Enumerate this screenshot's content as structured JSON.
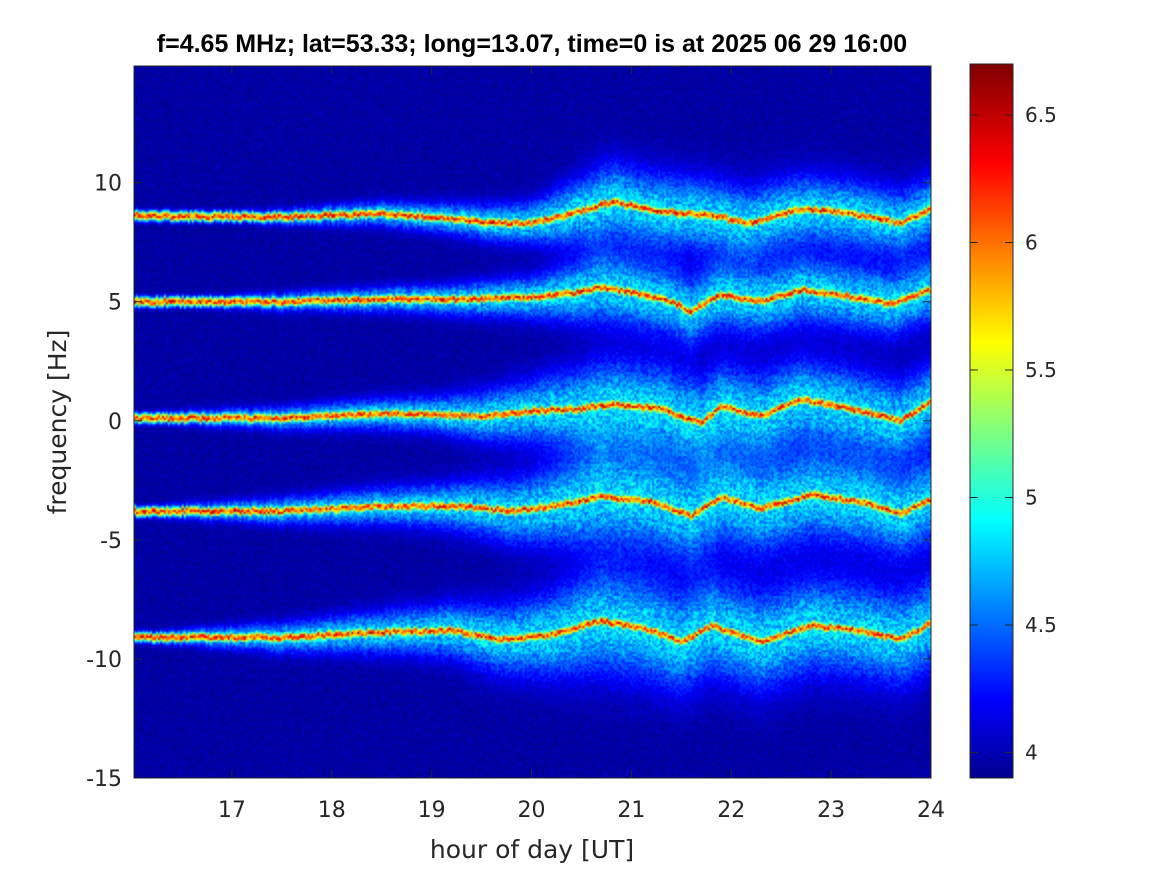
{
  "chart_data": {
    "type": "heatmap",
    "title": "f=4.65 MHz;  lat=53.33; long=13.07, time=0 is at 2025 06 29 16:00",
    "xlabel": "hour of day [UT]",
    "ylabel": "frequency [Hz]",
    "xlim": [
      16.02,
      24
    ],
    "ylim": [
      -15,
      14.9
    ],
    "x_ticks": [
      17,
      18,
      19,
      20,
      21,
      22,
      23,
      24
    ],
    "y_ticks": [
      -15,
      -10,
      -5,
      0,
      5,
      10
    ],
    "colorbar": {
      "limits": [
        3.9,
        6.7
      ],
      "ticks": [
        4,
        4.5,
        5,
        5.5,
        6,
        6.5
      ],
      "colormap": "jet"
    },
    "background_value": 4.0,
    "colors": {
      "background": "#00008F",
      "peak": "#7F0000"
    },
    "traces": [
      {
        "base_frequency": 8.6,
        "points": [
          [
            16.1,
            8.6
          ],
          [
            17.5,
            8.55
          ],
          [
            18.5,
            8.7
          ],
          [
            19.2,
            8.5
          ],
          [
            19.6,
            8.3
          ],
          [
            20.0,
            8.3
          ],
          [
            20.5,
            8.8
          ],
          [
            20.8,
            9.2
          ],
          [
            21.3,
            8.8
          ],
          [
            21.8,
            8.6
          ],
          [
            22.2,
            8.3
          ],
          [
            22.7,
            8.9
          ],
          [
            23.2,
            8.7
          ],
          [
            23.7,
            8.3
          ],
          [
            24.0,
            8.9
          ]
        ],
        "spread": [
          [
            16.1,
            0.05
          ],
          [
            19.0,
            0.4
          ],
          [
            20.0,
            0.6
          ],
          [
            20.7,
            1.1
          ],
          [
            24.0,
            0.9
          ]
        ]
      },
      {
        "base_frequency": 5.0,
        "points": [
          [
            16.1,
            5.0
          ],
          [
            17.5,
            5.0
          ],
          [
            18.5,
            5.1
          ],
          [
            19.3,
            5.1
          ],
          [
            20.0,
            5.2
          ],
          [
            20.5,
            5.4
          ],
          [
            20.7,
            5.6
          ],
          [
            21.0,
            5.4
          ],
          [
            21.4,
            5.0
          ],
          [
            21.6,
            4.6
          ],
          [
            21.9,
            5.3
          ],
          [
            22.3,
            5.0
          ],
          [
            22.7,
            5.5
          ],
          [
            23.2,
            5.2
          ],
          [
            23.6,
            4.9
          ],
          [
            24.0,
            5.5
          ]
        ],
        "spread": [
          [
            16.1,
            0.1
          ],
          [
            19.0,
            0.4
          ],
          [
            20.0,
            0.6
          ],
          [
            20.7,
            1.0
          ],
          [
            24.0,
            0.9
          ]
        ]
      },
      {
        "base_frequency": 0.1,
        "points": [
          [
            16.1,
            0.1
          ],
          [
            17.5,
            0.1
          ],
          [
            18.5,
            0.3
          ],
          [
            19.5,
            0.2
          ],
          [
            20.0,
            0.4
          ],
          [
            20.5,
            0.5
          ],
          [
            20.8,
            0.7
          ],
          [
            21.3,
            0.5
          ],
          [
            21.7,
            -0.1
          ],
          [
            21.9,
            0.6
          ],
          [
            22.3,
            0.2
          ],
          [
            22.7,
            0.9
          ],
          [
            23.1,
            0.6
          ],
          [
            23.7,
            0.0
          ],
          [
            24.0,
            0.8
          ]
        ],
        "spread": [
          [
            16.1,
            0.15
          ],
          [
            19.0,
            0.5
          ],
          [
            20.0,
            0.9
          ],
          [
            20.7,
            1.3
          ],
          [
            24.0,
            1.1
          ]
        ]
      },
      {
        "base_frequency": -3.8,
        "points": [
          [
            16.1,
            -3.8
          ],
          [
            17.5,
            -3.8
          ],
          [
            18.5,
            -3.6
          ],
          [
            19.3,
            -3.6
          ],
          [
            19.8,
            -3.8
          ],
          [
            20.2,
            -3.6
          ],
          [
            20.7,
            -3.2
          ],
          [
            21.2,
            -3.4
          ],
          [
            21.6,
            -4.0
          ],
          [
            21.9,
            -3.2
          ],
          [
            22.3,
            -3.7
          ],
          [
            22.8,
            -3.1
          ],
          [
            23.3,
            -3.4
          ],
          [
            23.7,
            -3.9
          ],
          [
            24.0,
            -3.3
          ]
        ],
        "spread": [
          [
            16.1,
            0.15
          ],
          [
            19.0,
            0.6
          ],
          [
            20.0,
            1.0
          ],
          [
            20.7,
            1.4
          ],
          [
            24.0,
            1.2
          ]
        ]
      },
      {
        "base_frequency": -9.1,
        "points": [
          [
            16.1,
            -9.1
          ],
          [
            17.5,
            -9.1
          ],
          [
            18.5,
            -8.9
          ],
          [
            19.2,
            -8.8
          ],
          [
            19.7,
            -9.2
          ],
          [
            20.2,
            -9.0
          ],
          [
            20.7,
            -8.4
          ],
          [
            21.2,
            -8.8
          ],
          [
            21.5,
            -9.3
          ],
          [
            21.8,
            -8.6
          ],
          [
            22.3,
            -9.3
          ],
          [
            22.8,
            -8.6
          ],
          [
            23.3,
            -8.8
          ],
          [
            23.7,
            -9.2
          ],
          [
            24.0,
            -8.5
          ]
        ],
        "spread": [
          [
            16.1,
            0.15
          ],
          [
            19.0,
            0.7
          ],
          [
            20.0,
            1.1
          ],
          [
            20.7,
            1.5
          ],
          [
            24.0,
            1.3
          ]
        ]
      }
    ]
  }
}
